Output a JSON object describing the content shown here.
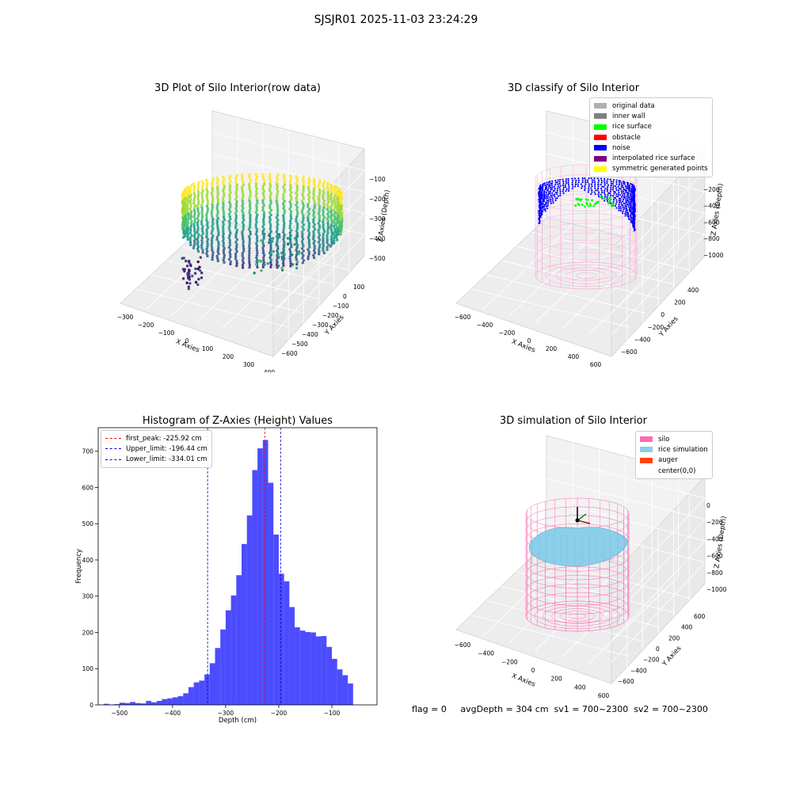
{
  "suptitle": "SJSJR01 2025-11-03 23:24:29",
  "footer": "flag = 0     avgDepth = 304 cm  sv1 = 700~2300  sv2 = 700~2300",
  "chart_data": [
    {
      "type": "scatter3d",
      "title": "3D Plot of Silo Interior(row data)",
      "xlabel": "X Axies",
      "ylabel": "Y Axies",
      "zlabel": "Z Axies (Depth)",
      "xticks": [
        "−300",
        "−200",
        "−100",
        "0",
        "100",
        "200",
        "300",
        "400"
      ],
      "yticks": [
        "100",
        "0",
        "−100",
        "−200",
        "−300",
        "−400",
        "−500",
        "−600"
      ],
      "zticks": [
        "−100",
        "−200",
        "−300",
        "−400",
        "−500"
      ],
      "xlim": [
        -340,
        420
      ],
      "ylim": [
        -650,
        170
      ],
      "zlim": [
        -560,
        -40
      ],
      "colormap": "viridis"
    },
    {
      "type": "scatter3d",
      "title": "3D classify of Silo Interior",
      "xlabel": "X Axies",
      "ylabel": "Y Axies",
      "zlabel": "Z Axies (Depth)",
      "xticks": [
        "−600",
        "−400",
        "−200",
        "0",
        "200",
        "400",
        "600"
      ],
      "yticks": [
        "400",
        "200",
        "0",
        "−200",
        "−400",
        "−600"
      ],
      "zticks": [
        "0",
        "−200",
        "−400",
        "−600",
        "−800",
        "−1000"
      ],
      "legend": [
        {
          "label": "original data",
          "color": "#b0b0b0"
        },
        {
          "label": "inner wall",
          "color": "#808080"
        },
        {
          "label": "rice surface",
          "color": "#00ff00"
        },
        {
          "label": "obstacle",
          "color": "#ff0000"
        },
        {
          "label": "noise",
          "color": "#0000ff"
        },
        {
          "label": "interpolated rice surface",
          "color": "#800080"
        },
        {
          "label": "symmetric generated points",
          "color": "#ffff00"
        }
      ]
    },
    {
      "type": "bar",
      "title": "Histogram of Z-Axies (Height) Values",
      "xlabel": "Depth (cm)",
      "ylabel": "Frequency",
      "xlim": [
        -540,
        -15
      ],
      "ylim": [
        0,
        765
      ],
      "xticks": [
        -500,
        -400,
        -300,
        -200,
        -100
      ],
      "yticks": [
        0,
        100,
        200,
        300,
        400,
        500,
        600,
        700
      ],
      "bin_start": -530,
      "bin_width": 10,
      "values": [
        3,
        1,
        2,
        6,
        5,
        8,
        5,
        4,
        11,
        7,
        11,
        16,
        18,
        21,
        24,
        32,
        49,
        62,
        67,
        84,
        115,
        157,
        208,
        261,
        302,
        358,
        444,
        523,
        648,
        708,
        731,
        613,
        470,
        362,
        341,
        270,
        214,
        205,
        201,
        200,
        189,
        190,
        160,
        127,
        98,
        82,
        59
      ],
      "color": "#0000ff",
      "vlines": [
        {
          "label": "first_peak: -225.92 cm",
          "x": -225.92,
          "color": "#ff0000"
        },
        {
          "label": "Upper_limit: -196.44 cm",
          "x": -196.44,
          "color": "#0000cc"
        },
        {
          "label": "Lower_limit: -334.01 cm",
          "x": -334.01,
          "color": "#0000cc"
        }
      ],
      "legend_position": "top-left"
    },
    {
      "type": "surface3d",
      "title": "3D simulation of Silo Interior",
      "xlabel": "X Axies",
      "ylabel": "Y Axies",
      "zlabel": "Z Axies (Depth)",
      "xticks": [
        "−600",
        "−400",
        "−200",
        "0",
        "200",
        "400",
        "600"
      ],
      "yticks": [
        "600",
        "400",
        "200",
        "0",
        "−200",
        "−400",
        "−600"
      ],
      "zticks": [
        "0",
        "−200",
        "−400",
        "−600",
        "−800",
        "−1000"
      ],
      "legend": [
        {
          "label": "silo",
          "color": "#ff69b4"
        },
        {
          "label": "rice simulation",
          "color": "#87ceeb"
        },
        {
          "label": "auger",
          "color": "#ff4500"
        },
        {
          "label": "center(0,0)",
          "color": "#ffffff"
        }
      ]
    }
  ]
}
